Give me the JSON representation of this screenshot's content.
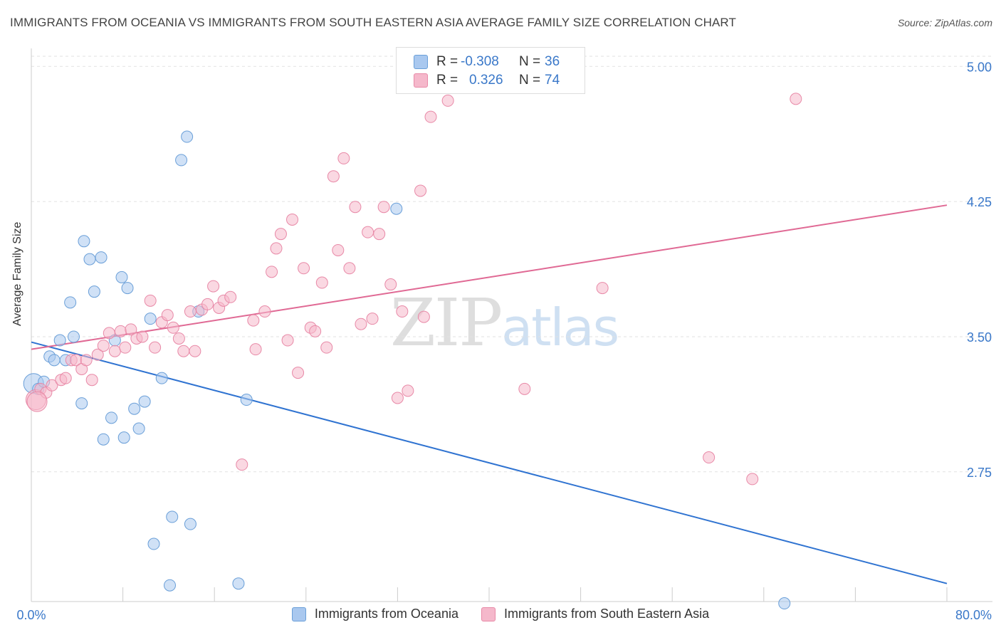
{
  "header": {
    "title": "IMMIGRANTS FROM OCEANIA VS IMMIGRANTS FROM SOUTH EASTERN ASIA AVERAGE FAMILY SIZE CORRELATION CHART",
    "source": "Source: ZipAtlas.com"
  },
  "watermark": {
    "zip": "ZIP",
    "atlas": "atlas"
  },
  "legend": {
    "rows": [
      {
        "r_label": "R =",
        "r_value": "-0.308",
        "n_label": "N =",
        "n_value": "36",
        "color": "#a9c8ef"
      },
      {
        "r_label": "R =",
        "r_value": "0.326",
        "n_label": "N =",
        "n_value": "74",
        "color": "#f5b8cb"
      }
    ]
  },
  "bottom_legend": {
    "items": [
      {
        "label": "Immigrants from Oceania",
        "color": "#a9c8ef"
      },
      {
        "label": "Immigrants from South Eastern Asia",
        "color": "#f5b8cb"
      }
    ]
  },
  "chart_data": {
    "type": "scatter",
    "title": "IMMIGRANTS FROM OCEANIA VS IMMIGRANTS FROM SOUTH EASTERN ASIA AVERAGE FAMILY SIZE CORRELATION CHART",
    "xlabel": "",
    "ylabel": "Average Family Size",
    "xlim": [
      0,
      80
    ],
    "ylim": [
      2.03,
      5.1
    ],
    "x_tick_labels": [
      "0.0%",
      "80.0%"
    ],
    "y_ticks": [
      2.75,
      3.5,
      4.25,
      5.0
    ],
    "y_tick_labels": [
      "2.75",
      "3.50",
      "4.25",
      "5.00"
    ],
    "grid": true,
    "legend_position": "top-center",
    "series": [
      {
        "name": "Immigrants from Oceania",
        "color": "#a9c8ef",
        "stroke": "#6a9fd8",
        "trend_color": "#2f73d1",
        "trend": [
          [
            0,
            3.47
          ],
          [
            80,
            2.13
          ]
        ],
        "points": [
          [
            0.2,
            3.24
          ],
          [
            0.6,
            3.21
          ],
          [
            1.1,
            3.25
          ],
          [
            1.6,
            3.39
          ],
          [
            2.0,
            3.37
          ],
          [
            2.5,
            3.48
          ],
          [
            3.0,
            3.37
          ],
          [
            3.4,
            3.69
          ],
          [
            3.7,
            3.5
          ],
          [
            4.4,
            3.13
          ],
          [
            4.6,
            4.03
          ],
          [
            5.1,
            3.93
          ],
          [
            5.5,
            3.75
          ],
          [
            6.1,
            3.94
          ],
          [
            6.3,
            2.93
          ],
          [
            7.0,
            3.05
          ],
          [
            7.3,
            3.48
          ],
          [
            7.9,
            3.83
          ],
          [
            8.1,
            2.94
          ],
          [
            8.4,
            3.77
          ],
          [
            9.0,
            3.1
          ],
          [
            9.4,
            2.99
          ],
          [
            9.9,
            3.14
          ],
          [
            10.4,
            3.6
          ],
          [
            10.7,
            2.35
          ],
          [
            11.4,
            3.27
          ],
          [
            12.1,
            2.12
          ],
          [
            12.3,
            2.5
          ],
          [
            13.1,
            4.48
          ],
          [
            13.6,
            4.61
          ],
          [
            13.9,
            2.46
          ],
          [
            14.6,
            3.64
          ],
          [
            18.1,
            2.13
          ],
          [
            18.8,
            3.15
          ],
          [
            31.9,
            4.21
          ],
          [
            65.8,
            2.02
          ]
        ]
      },
      {
        "name": "Immigrants from South Eastern Asia",
        "color": "#f5b8cb",
        "stroke": "#e889a7",
        "trend_color": "#e06994",
        "trend": [
          [
            0,
            3.43
          ],
          [
            80,
            4.23
          ]
        ],
        "points": [
          [
            0.4,
            3.15
          ],
          [
            0.8,
            3.21
          ],
          [
            1.3,
            3.19
          ],
          [
            1.8,
            3.23
          ],
          [
            2.6,
            3.26
          ],
          [
            3.0,
            3.27
          ],
          [
            3.5,
            3.37
          ],
          [
            3.9,
            3.37
          ],
          [
            4.4,
            3.32
          ],
          [
            4.8,
            3.37
          ],
          [
            5.3,
            3.26
          ],
          [
            5.8,
            3.4
          ],
          [
            6.3,
            3.45
          ],
          [
            6.8,
            3.52
          ],
          [
            7.3,
            3.42
          ],
          [
            7.8,
            3.53
          ],
          [
            8.2,
            3.44
          ],
          [
            8.7,
            3.54
          ],
          [
            9.2,
            3.49
          ],
          [
            9.7,
            3.5
          ],
          [
            10.4,
            3.7
          ],
          [
            10.8,
            3.44
          ],
          [
            11.4,
            3.58
          ],
          [
            11.9,
            3.62
          ],
          [
            12.4,
            3.55
          ],
          [
            12.9,
            3.49
          ],
          [
            13.3,
            3.42
          ],
          [
            13.9,
            3.64
          ],
          [
            14.3,
            3.42
          ],
          [
            14.9,
            3.65
          ],
          [
            15.4,
            3.68
          ],
          [
            15.9,
            3.78
          ],
          [
            16.4,
            3.66
          ],
          [
            16.8,
            3.7
          ],
          [
            17.4,
            3.72
          ],
          [
            18.4,
            2.79
          ],
          [
            19.4,
            3.59
          ],
          [
            19.6,
            3.43
          ],
          [
            20.4,
            3.64
          ],
          [
            21.0,
            3.86
          ],
          [
            21.4,
            3.99
          ],
          [
            21.8,
            4.07
          ],
          [
            22.4,
            3.48
          ],
          [
            22.8,
            4.15
          ],
          [
            23.3,
            3.3
          ],
          [
            23.8,
            3.88
          ],
          [
            24.4,
            3.55
          ],
          [
            24.8,
            3.53
          ],
          [
            25.4,
            3.8
          ],
          [
            25.8,
            3.44
          ],
          [
            26.4,
            4.39
          ],
          [
            26.8,
            3.98
          ],
          [
            27.3,
            4.49
          ],
          [
            27.8,
            3.88
          ],
          [
            28.3,
            4.22
          ],
          [
            28.8,
            3.57
          ],
          [
            29.4,
            4.08
          ],
          [
            29.8,
            3.6
          ],
          [
            30.4,
            4.07
          ],
          [
            30.8,
            4.22
          ],
          [
            31.4,
            3.79
          ],
          [
            32.0,
            3.16
          ],
          [
            32.4,
            3.64
          ],
          [
            32.9,
            3.2
          ],
          [
            34.0,
            4.31
          ],
          [
            34.3,
            3.61
          ],
          [
            34.9,
            4.72
          ],
          [
            36.4,
            4.81
          ],
          [
            43.1,
            3.21
          ],
          [
            49.9,
            3.77
          ],
          [
            59.2,
            2.83
          ],
          [
            63.0,
            2.71
          ],
          [
            66.8,
            4.82
          ],
          [
            0.5,
            3.14
          ]
        ]
      }
    ]
  }
}
